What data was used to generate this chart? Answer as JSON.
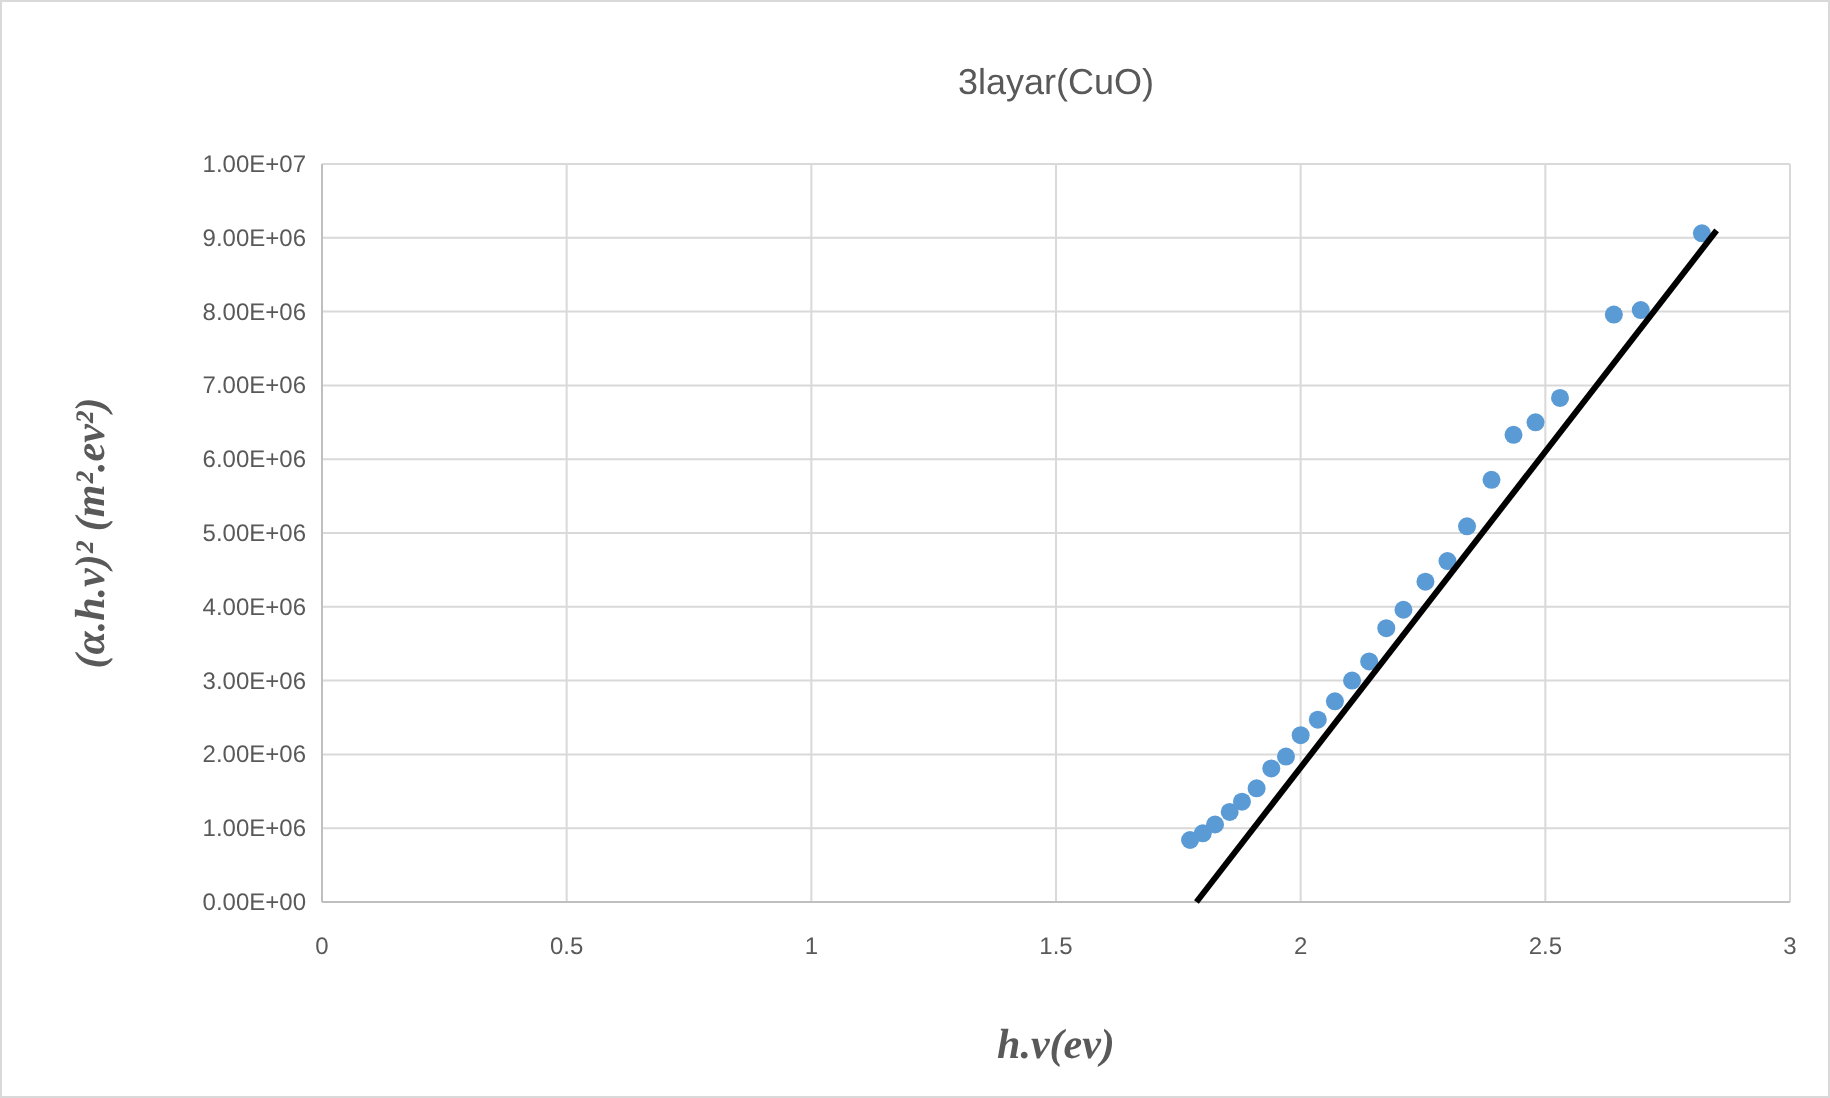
{
  "chart_data": {
    "type": "scatter",
    "title": "3layar(CuO)",
    "xlabel": "h.v(ev)",
    "ylabel": "(α.h.v)² (m².ev²)",
    "xlim": [
      0,
      3
    ],
    "xticks": [
      0,
      {
        "value": 0.5,
        "label": "0.5"
      },
      1,
      {
        "value": 1.5,
        "label": "1.5"
      },
      2,
      {
        "value": 2.5,
        "label": "2.5"
      },
      3
    ],
    "ylim": [
      0,
      10000000
    ],
    "yticks": [
      {
        "value": 0,
        "label": "0.00E+00"
      },
      {
        "value": 1000000,
        "label": "1.00E+06"
      },
      {
        "value": 2000000,
        "label": "2.00E+06"
      },
      {
        "value": 3000000,
        "label": "3.00E+06"
      },
      {
        "value": 4000000,
        "label": "4.00E+06"
      },
      {
        "value": 5000000,
        "label": "5.00E+06"
      },
      {
        "value": 6000000,
        "label": "6.00E+06"
      },
      {
        "value": 7000000,
        "label": "7.00E+06"
      },
      {
        "value": 8000000,
        "label": "8.00E+06"
      },
      {
        "value": 9000000,
        "label": "9.00E+06"
      },
      {
        "value": 10000000,
        "label": "1.00E+07"
      }
    ],
    "grid": true,
    "marker": "circle",
    "series": [
      {
        "color": "#5b9bd5",
        "x": [
          1.774,
          1.8,
          1.825,
          1.855,
          1.88,
          1.91,
          1.94,
          1.97,
          2.0,
          2.035,
          2.07,
          2.105,
          2.14,
          2.175,
          2.21,
          2.255,
          2.3,
          2.34,
          2.39,
          2.435,
          2.48,
          2.53,
          2.64,
          2.695,
          2.82
        ],
        "values": [
          840000,
          930000,
          1050000,
          1220000,
          1360000,
          1540000,
          1810000,
          1970000,
          2260000,
          2470000,
          2720000,
          3000000,
          3260000,
          3710000,
          3960000,
          4340000,
          4620000,
          5090000,
          5720000,
          6330000,
          6500000,
          6830000,
          7960000,
          8020000,
          9060000
        ]
      },
      {
        "type": "line",
        "color": "#000000",
        "marker": "none",
        "line_style": "solid",
        "x": [
          1.787,
          2.85
        ],
        "values": [
          0,
          9100000
        ]
      }
    ]
  }
}
